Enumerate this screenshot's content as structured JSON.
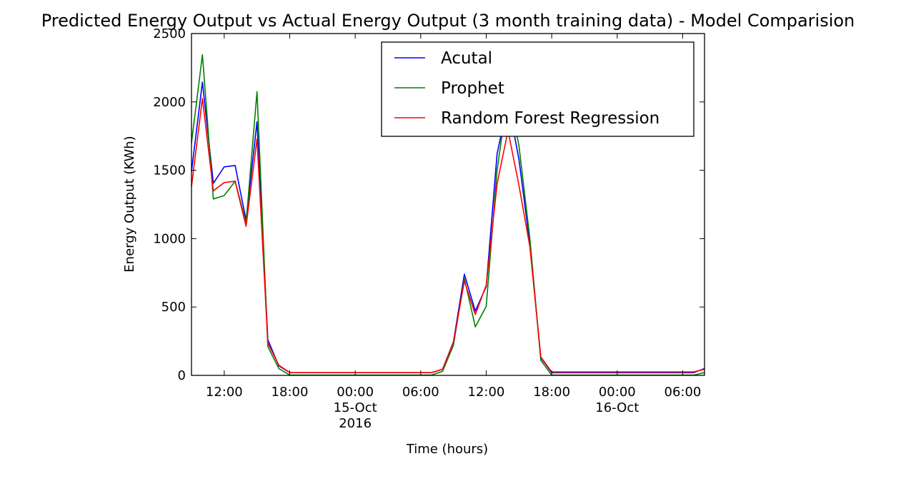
{
  "chart_data": {
    "type": "line",
    "title": "Predicted Energy Output vs Actual Energy Output (3 month training data) - Model Comparision",
    "xlabel": "Time (hours)",
    "ylabel": "Energy Output (KWh)",
    "ylim": [
      0,
      2500
    ],
    "xlim": [
      "2016-10-14 09:00",
      "2016-10-16 08:00"
    ],
    "yticks": [
      "0",
      "500",
      "1000",
      "1500",
      "2000",
      "2500"
    ],
    "xticks": [
      {
        "x": "2016-10-14 12:00",
        "lines": [
          "12:00"
        ]
      },
      {
        "x": "2016-10-14 18:00",
        "lines": [
          "18:00"
        ]
      },
      {
        "x": "2016-10-15 00:00",
        "lines": [
          "00:00",
          "15-Oct",
          "2016"
        ]
      },
      {
        "x": "2016-10-15 06:00",
        "lines": [
          "06:00"
        ]
      },
      {
        "x": "2016-10-15 12:00",
        "lines": [
          "12:00"
        ]
      },
      {
        "x": "2016-10-15 18:00",
        "lines": [
          "18:00"
        ]
      },
      {
        "x": "2016-10-16 00:00",
        "lines": [
          "00:00",
          "16-Oct"
        ]
      },
      {
        "x": "2016-10-16 06:00",
        "lines": [
          "06:00"
        ]
      }
    ],
    "grid": false,
    "legend_position": "top-right",
    "series": [
      {
        "name": "Acutal",
        "color": "#0000ff",
        "points": [
          [
            "2016-10-14 09:00",
            1490
          ],
          [
            "2016-10-14 10:00",
            2145
          ],
          [
            "2016-10-14 11:00",
            1405
          ],
          [
            "2016-10-14 12:00",
            1525
          ],
          [
            "2016-10-14 13:00",
            1535
          ],
          [
            "2016-10-14 14:00",
            1135
          ],
          [
            "2016-10-14 15:00",
            1855
          ],
          [
            "2016-10-14 16:00",
            260
          ],
          [
            "2016-10-14 17:00",
            70
          ],
          [
            "2016-10-14 18:00",
            20
          ],
          [
            "2016-10-14 19:00",
            20
          ],
          [
            "2016-10-15 07:00",
            20
          ],
          [
            "2016-10-15 08:00",
            45
          ],
          [
            "2016-10-15 09:00",
            245
          ],
          [
            "2016-10-15 10:00",
            740
          ],
          [
            "2016-10-15 11:00",
            470
          ],
          [
            "2016-10-15 12:00",
            650
          ],
          [
            "2016-10-15 13:00",
            1620
          ],
          [
            "2016-10-15 14:00",
            2000
          ],
          [
            "2016-10-15 15:00",
            1580
          ],
          [
            "2016-10-15 16:00",
            960
          ],
          [
            "2016-10-15 17:00",
            130
          ],
          [
            "2016-10-15 18:00",
            20
          ],
          [
            "2016-10-16 07:00",
            20
          ],
          [
            "2016-10-16 08:00",
            50
          ]
        ]
      },
      {
        "name": "Prophet",
        "color": "#008000",
        "points": [
          [
            "2016-10-14 09:00",
            1700
          ],
          [
            "2016-10-14 10:00",
            2345
          ],
          [
            "2016-10-14 11:00",
            1290
          ],
          [
            "2016-10-14 12:00",
            1315
          ],
          [
            "2016-10-14 13:00",
            1420
          ],
          [
            "2016-10-14 14:00",
            1115
          ],
          [
            "2016-10-14 15:00",
            2075
          ],
          [
            "2016-10-14 16:00",
            210
          ],
          [
            "2016-10-14 17:00",
            50
          ],
          [
            "2016-10-14 18:00",
            2
          ],
          [
            "2016-10-15 07:00",
            2
          ],
          [
            "2016-10-15 08:00",
            30
          ],
          [
            "2016-10-15 09:00",
            220
          ],
          [
            "2016-10-15 10:00",
            710
          ],
          [
            "2016-10-15 11:00",
            355
          ],
          [
            "2016-10-15 12:00",
            505
          ],
          [
            "2016-10-15 13:00",
            1500
          ],
          [
            "2016-10-15 14:00",
            2070
          ],
          [
            "2016-10-15 15:00",
            1680
          ],
          [
            "2016-10-15 16:00",
            1000
          ],
          [
            "2016-10-15 17:00",
            110
          ],
          [
            "2016-10-15 18:00",
            2
          ],
          [
            "2016-10-16 07:00",
            2
          ],
          [
            "2016-10-16 08:00",
            20
          ]
        ]
      },
      {
        "name": "Random Forest Regression",
        "color": "#ff0000",
        "points": [
          [
            "2016-10-14 09:00",
            1380
          ],
          [
            "2016-10-14 10:00",
            2025
          ],
          [
            "2016-10-14 11:00",
            1350
          ],
          [
            "2016-10-14 12:00",
            1410
          ],
          [
            "2016-10-14 13:00",
            1420
          ],
          [
            "2016-10-14 14:00",
            1090
          ],
          [
            "2016-10-14 15:00",
            1730
          ],
          [
            "2016-10-14 16:00",
            235
          ],
          [
            "2016-10-14 17:00",
            75
          ],
          [
            "2016-10-14 18:00",
            20
          ],
          [
            "2016-10-14 19:00",
            20
          ],
          [
            "2016-10-15 07:00",
            20
          ],
          [
            "2016-10-15 08:00",
            45
          ],
          [
            "2016-10-15 09:00",
            240
          ],
          [
            "2016-10-15 10:00",
            690
          ],
          [
            "2016-10-15 11:00",
            445
          ],
          [
            "2016-10-15 12:00",
            660
          ],
          [
            "2016-10-15 13:00",
            1400
          ],
          [
            "2016-10-15 14:00",
            1790
          ],
          [
            "2016-10-15 15:00",
            1390
          ],
          [
            "2016-10-15 16:00",
            940
          ],
          [
            "2016-10-15 17:00",
            135
          ],
          [
            "2016-10-15 18:00",
            25
          ],
          [
            "2016-10-16 07:00",
            25
          ],
          [
            "2016-10-16 08:00",
            45
          ]
        ]
      }
    ]
  }
}
